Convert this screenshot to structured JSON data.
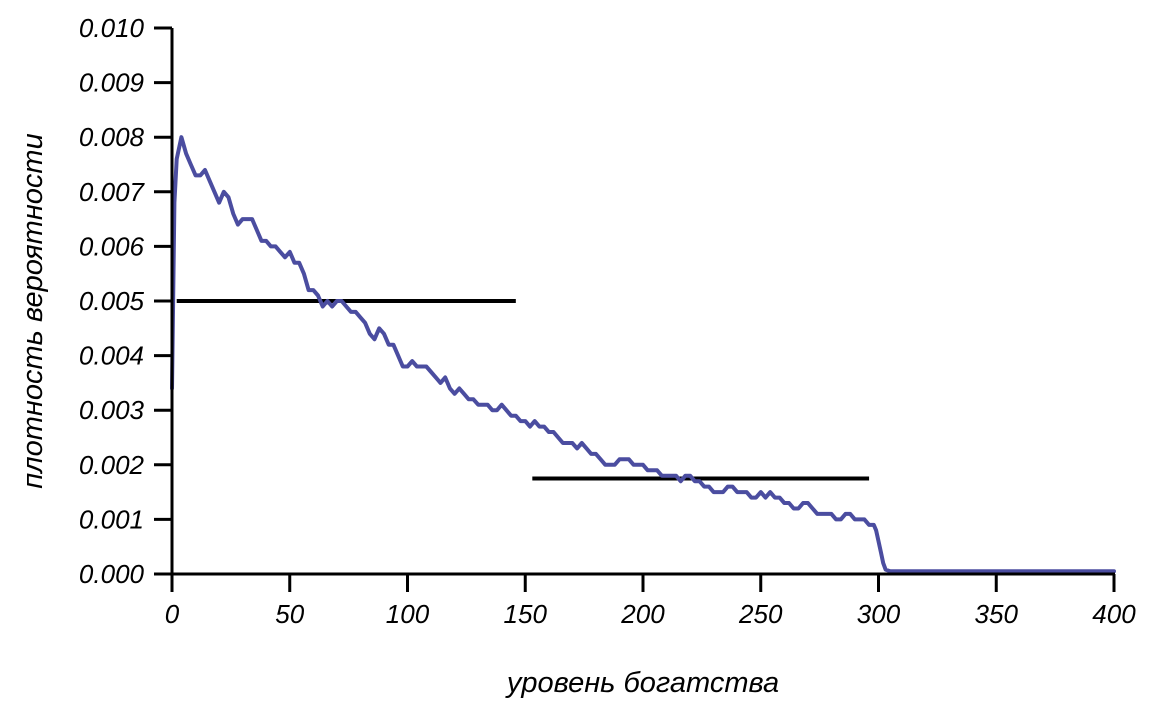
{
  "chart_data": {
    "type": "line",
    "title": "",
    "xlabel": "уровень богатства",
    "ylabel": "плотность вероятности",
    "xlim": [
      0,
      400
    ],
    "ylim": [
      0,
      0.01
    ],
    "x_ticks": [
      "0",
      "50",
      "100",
      "150",
      "200",
      "250",
      "300",
      "350",
      "400"
    ],
    "y_ticks": [
      "0.000",
      "0.001",
      "0.002",
      "0.003",
      "0.004",
      "0.005",
      "0.006",
      "0.007",
      "0.008",
      "0.009",
      "0.010"
    ],
    "grid": false,
    "legend": "none",
    "colors": {
      "density": "#4b4da0",
      "reference": "#000000"
    },
    "series": [
      {
        "x": [
          0,
          1,
          2,
          4,
          6,
          8,
          10,
          12,
          14,
          16,
          18,
          20,
          22,
          24,
          26,
          28,
          30,
          32,
          34,
          36,
          38,
          40,
          42,
          44,
          46,
          48,
          50,
          52,
          54,
          56,
          58,
          60,
          62,
          64,
          66,
          68,
          70,
          72,
          74,
          76,
          78,
          80,
          82,
          84,
          86,
          88,
          90,
          92,
          94,
          96,
          98,
          100,
          102,
          104,
          106,
          108,
          110,
          112,
          114,
          116,
          118,
          120,
          122,
          124,
          126,
          128,
          130,
          132,
          134,
          136,
          138,
          140,
          142,
          144,
          146,
          148,
          150,
          152,
          154,
          156,
          158,
          160,
          162,
          164,
          166,
          168,
          170,
          172,
          174,
          176,
          178,
          180,
          182,
          184,
          186,
          188,
          190,
          192,
          194,
          196,
          198,
          200,
          202,
          204,
          206,
          208,
          210,
          212,
          214,
          216,
          218,
          220,
          222,
          224,
          226,
          228,
          230,
          232,
          234,
          236,
          238,
          240,
          242,
          244,
          246,
          248,
          250,
          252,
          254,
          256,
          258,
          260,
          262,
          264,
          266,
          268,
          270,
          272,
          274,
          276,
          278,
          280,
          282,
          284,
          286,
          288,
          290,
          292,
          294,
          296,
          298,
          299,
          300,
          301,
          302,
          303,
          305,
          310,
          320,
          340,
          360,
          380,
          400
        ],
        "values": [
          0.0034,
          0.0068,
          0.0076,
          0.008,
          0.0077,
          0.0075,
          0.0073,
          0.0073,
          0.0074,
          0.0072,
          0.007,
          0.0068,
          0.007,
          0.0069,
          0.0066,
          0.0064,
          0.0065,
          0.0065,
          0.0065,
          0.0063,
          0.0061,
          0.0061,
          0.006,
          0.006,
          0.0059,
          0.0058,
          0.0059,
          0.0057,
          0.0057,
          0.0055,
          0.0052,
          0.0052,
          0.0051,
          0.0049,
          0.005,
          0.0049,
          0.005,
          0.005,
          0.0049,
          0.0048,
          0.0048,
          0.0047,
          0.0046,
          0.0044,
          0.0043,
          0.0045,
          0.0044,
          0.0042,
          0.0042,
          0.004,
          0.0038,
          0.0038,
          0.0039,
          0.0038,
          0.0038,
          0.0038,
          0.0037,
          0.0036,
          0.0035,
          0.0036,
          0.0034,
          0.0033,
          0.0034,
          0.0033,
          0.0032,
          0.0032,
          0.0031,
          0.0031,
          0.0031,
          0.003,
          0.003,
          0.0031,
          0.003,
          0.0029,
          0.0029,
          0.0028,
          0.0028,
          0.0027,
          0.0028,
          0.0027,
          0.0027,
          0.0026,
          0.0026,
          0.0025,
          0.0024,
          0.0024,
          0.0024,
          0.0023,
          0.0024,
          0.0023,
          0.0022,
          0.0022,
          0.0021,
          0.002,
          0.002,
          0.002,
          0.0021,
          0.0021,
          0.0021,
          0.002,
          0.002,
          0.002,
          0.0019,
          0.0019,
          0.0019,
          0.0018,
          0.0018,
          0.0018,
          0.0018,
          0.0017,
          0.0018,
          0.0018,
          0.0017,
          0.0017,
          0.0016,
          0.0016,
          0.0015,
          0.0015,
          0.0015,
          0.0016,
          0.0016,
          0.0015,
          0.0015,
          0.0015,
          0.0014,
          0.0014,
          0.0015,
          0.0014,
          0.0015,
          0.0014,
          0.0014,
          0.0013,
          0.0013,
          0.0012,
          0.0012,
          0.0013,
          0.0013,
          0.0012,
          0.0011,
          0.0011,
          0.0011,
          0.0011,
          0.001,
          0.001,
          0.0011,
          0.0011,
          0.001,
          0.001,
          0.001,
          0.0009,
          0.0009,
          0.0008,
          0.0006,
          0.0004,
          0.0002,
          8e-05,
          5e-05,
          5e-05,
          5e-05,
          5e-05,
          5e-05,
          5e-05,
          5e-05
        ]
      }
    ],
    "reference_lines": [
      {
        "x": [
          2,
          146
        ],
        "y": 0.005
      },
      {
        "x": [
          153,
          296
        ],
        "y": 0.00175
      }
    ]
  }
}
